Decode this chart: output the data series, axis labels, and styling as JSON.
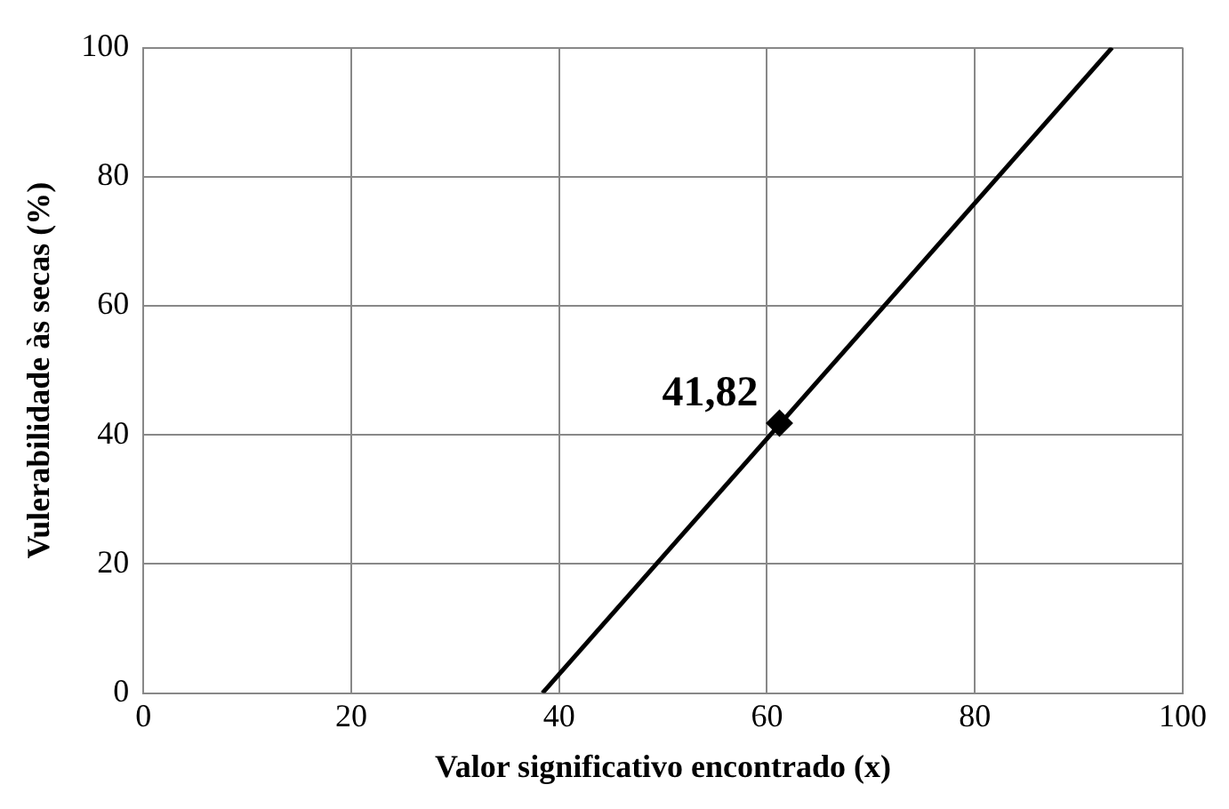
{
  "chart_data": {
    "type": "line",
    "xlabel": "Valor significativo encontrado (x)",
    "ylabel": "Vulerabilidade às secas (%)",
    "xlim": [
      0,
      100
    ],
    "ylim": [
      0,
      100
    ],
    "xticks": [
      0,
      20,
      40,
      60,
      80,
      100
    ],
    "yticks": [
      0,
      20,
      40,
      60,
      80,
      100
    ],
    "grid": true,
    "legend": false,
    "series": [
      {
        "color": "#000000",
        "marker": "none",
        "line_style": "solid",
        "x": [
          38.4,
          93.2
        ],
        "values": [
          0,
          100
        ]
      },
      {
        "type": "scatter",
        "color": "#000000",
        "marker": "diamond",
        "x": [
          61.2
        ],
        "values": [
          41.82
        ],
        "value_labels": [
          "41,82"
        ]
      }
    ]
  }
}
